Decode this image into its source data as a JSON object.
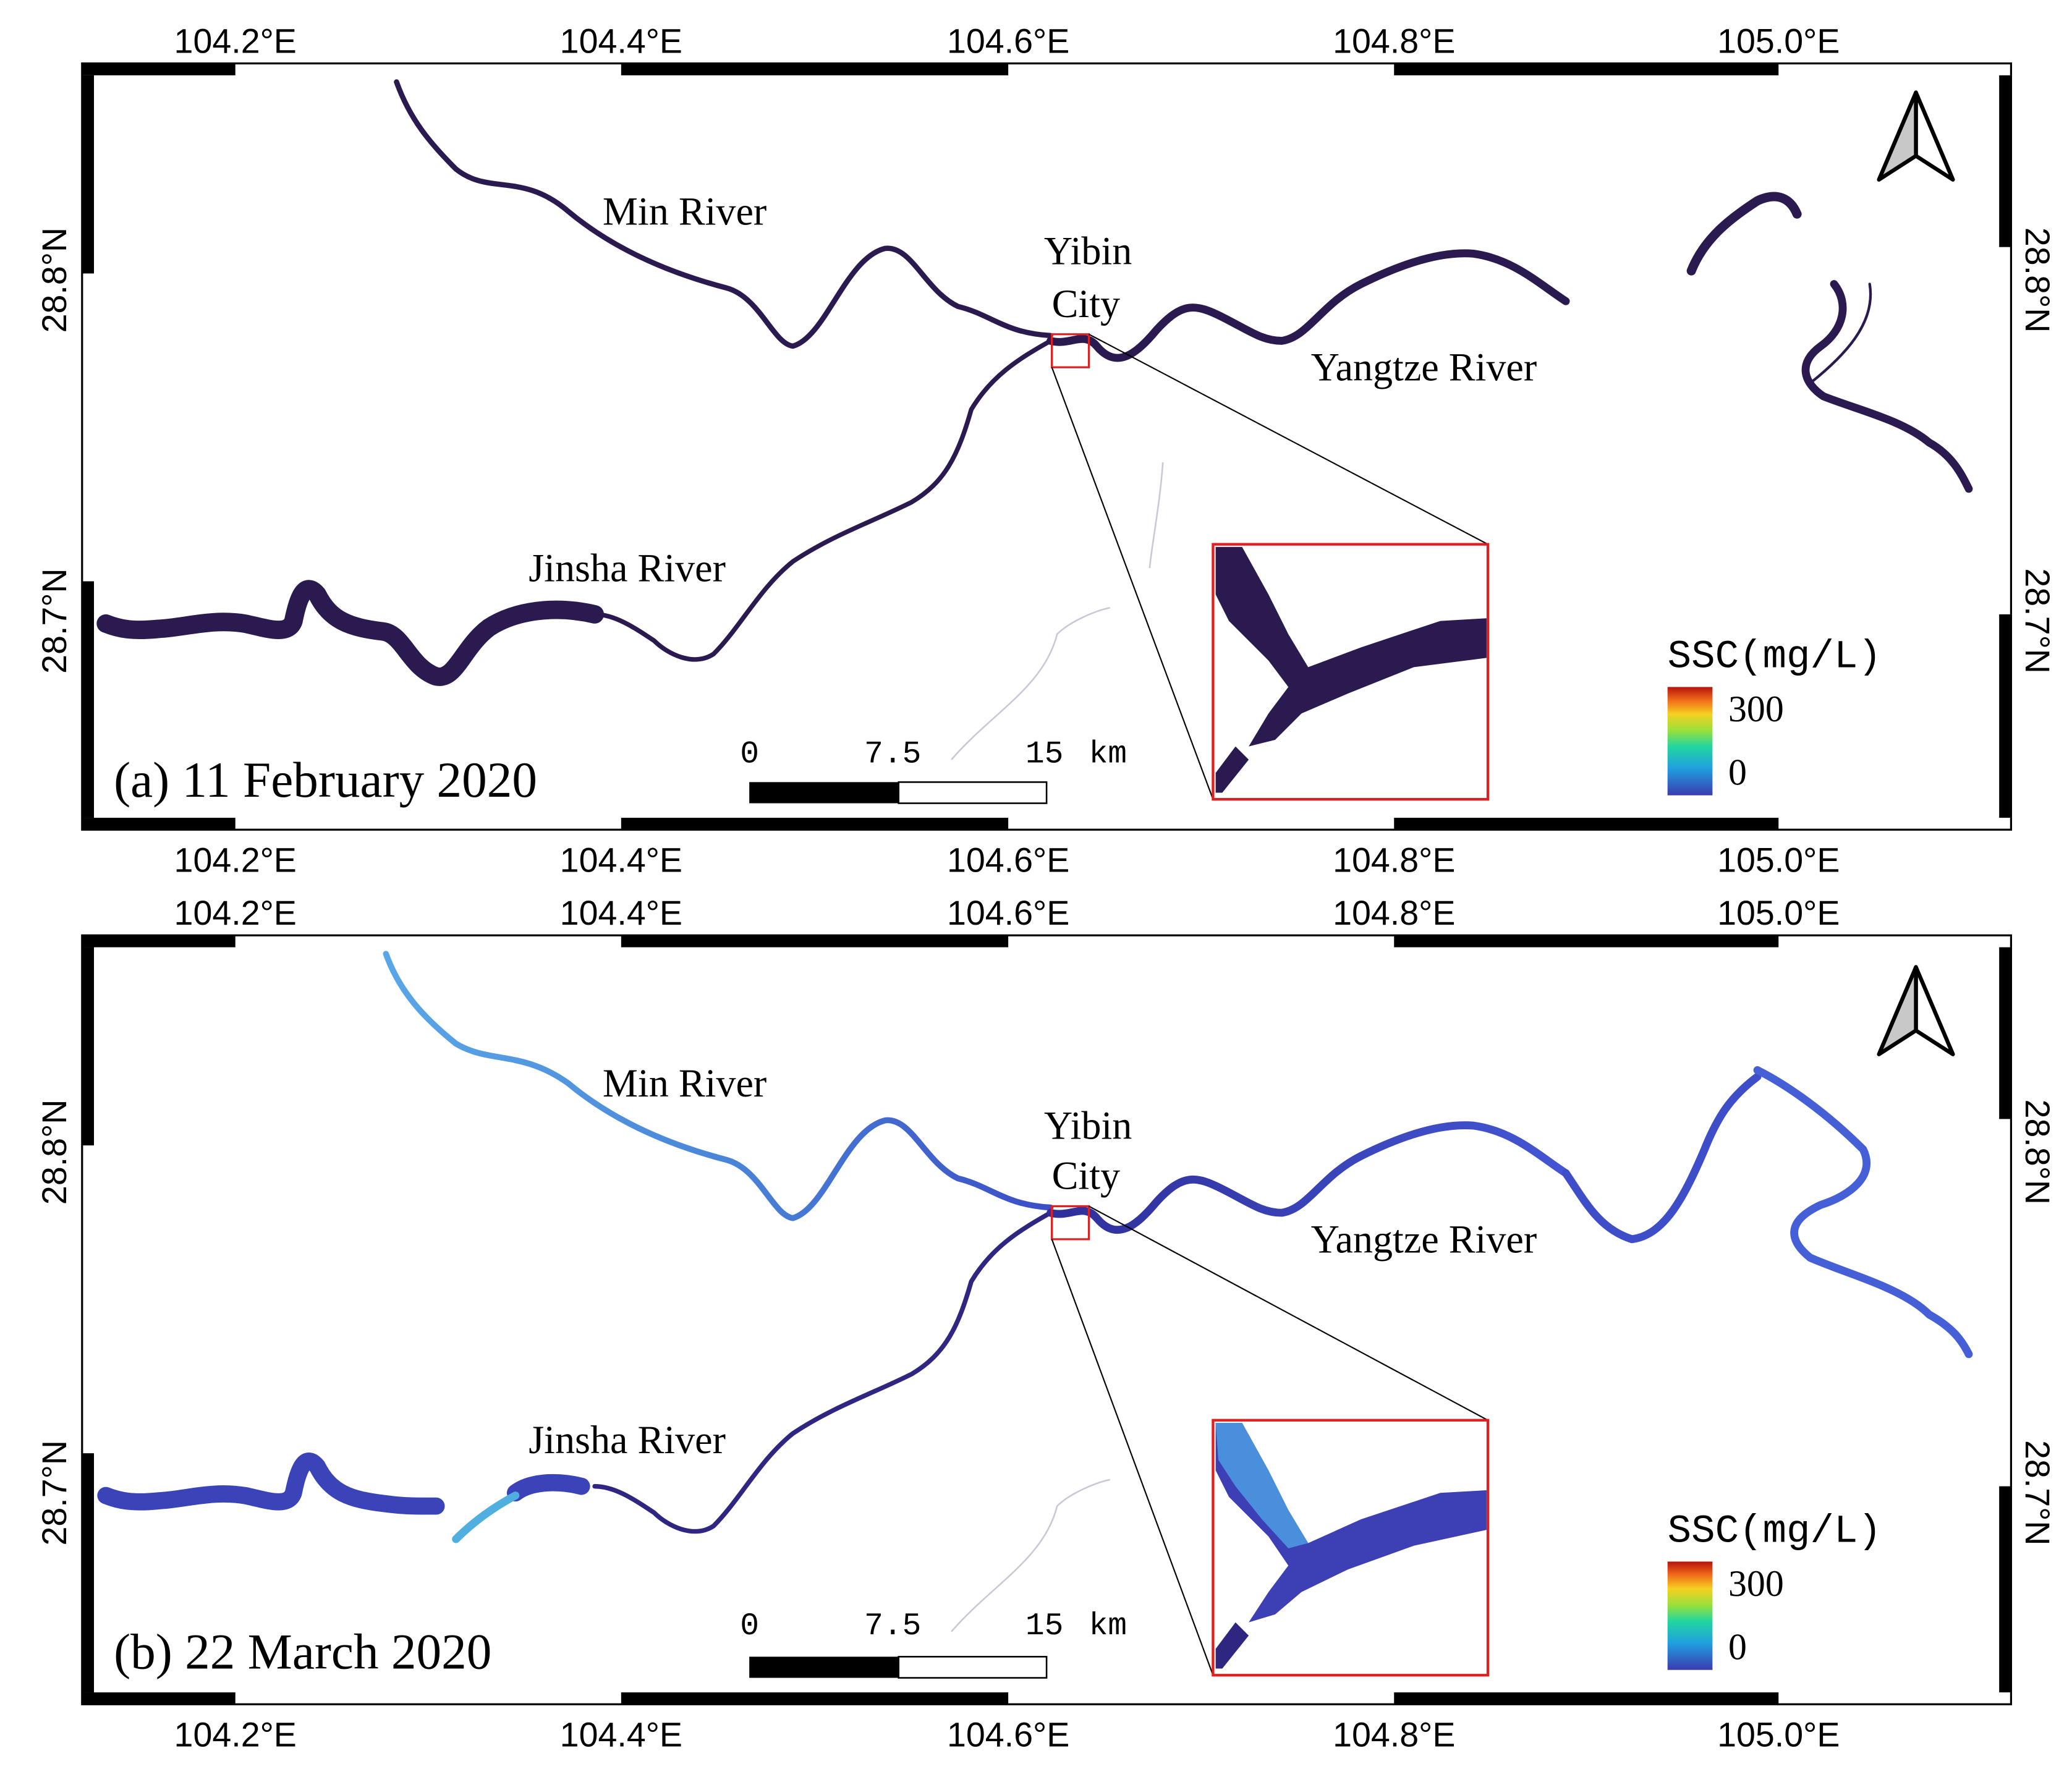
{
  "colors": {
    "river_dark": "#2b1a4f",
    "river_mar_light": "#4a8fdc",
    "river_mar_mid": "#3d4fc8",
    "inset_border": "#e02020",
    "frame_black": "#000000",
    "ssc_high": "#c0150d",
    "ssc_low": "#3b3bb0"
  },
  "coordinate_labels": {
    "lon": [
      "104.2°E",
      "104.4°E",
      "104.6°E",
      "104.8°E",
      "105.0°E"
    ],
    "lat": [
      "28.8°N",
      "28.7°N"
    ]
  },
  "panels": [
    {
      "id": "a",
      "caption": "(a) 11 February 2020",
      "labels": {
        "min_river": "Min River",
        "yibin": "Yibin",
        "city": "City",
        "yangtze_river": "Yangtze River",
        "jinsha_river": "Jinsha River"
      },
      "scalebar": {
        "tick_0": "0",
        "tick_1": "7.5",
        "tick_2": "15",
        "unit": "km"
      },
      "legend": {
        "title": "SSC(mg/L)",
        "max": "300",
        "min": "0"
      },
      "north_arrow_icon": "north-arrow-icon"
    },
    {
      "id": "b",
      "caption": "(b) 22 March 2020",
      "labels": {
        "min_river": "Min River",
        "yibin": "Yibin",
        "city": "City",
        "yangtze_river": "Yangtze River",
        "jinsha_river": "Jinsha River"
      },
      "scalebar": {
        "tick_0": "0",
        "tick_1": "7.5",
        "tick_2": "15",
        "unit": "km"
      },
      "legend": {
        "title": "SSC(mg/L)",
        "max": "300",
        "min": "0"
      },
      "north_arrow_icon": "north-arrow-icon"
    }
  ]
}
